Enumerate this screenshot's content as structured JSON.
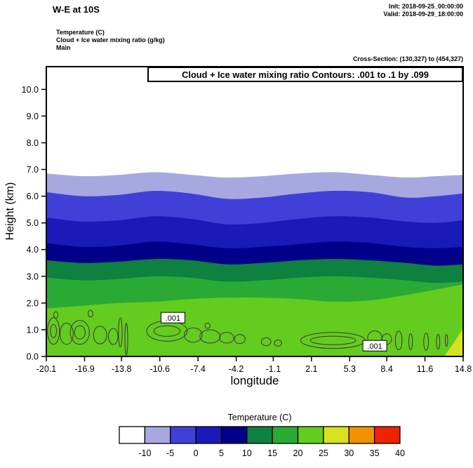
{
  "header": {
    "title": "W-E at 10S",
    "init_label": "Init: 2018-09-25_00:00:00",
    "valid_label": "Valid: 2018-09-29_18:00:00",
    "legend_lines": [
      "Temperature  (C)",
      "Cloud + Ice water mixing ratio  (g/kg)",
      "Main"
    ],
    "cross_section": "Cross-Section: (130,327) to (454,327)"
  },
  "plot": {
    "contour_box_label": "Cloud + Ice water mixing ratio Contours: .001 to .1 by .099",
    "ylabel": "Height (km)",
    "xlabel": "longitude"
  },
  "chart_data": {
    "type": "heatmap",
    "title": "Cloud + Ice water mixing ratio Contours: .001 to .1 by .099",
    "description": "W-E vertical cross-section at 10S: filled temperature (C) bands with cloud+ice mixing ratio line contours (.001 g/kg) near the surface",
    "xlabel": "longitude",
    "ylabel": "Height (km)",
    "xlim": [
      -20.1,
      14.8
    ],
    "ylim": [
      0,
      10.85
    ],
    "x_ticks": [
      "-20.1",
      "-16.9",
      "-13.8",
      "-10.6",
      "-7.4",
      "-4.2",
      "-1.1",
      "2.1",
      "5.3",
      "8.4",
      "11.6",
      "14.8"
    ],
    "y_ticks": [
      "0.0",
      "1.0",
      "2.0",
      "3.0",
      "4.0",
      "5.0",
      "6.0",
      "7.0",
      "8.0",
      "9.0",
      "10.0"
    ],
    "sample_lons": [
      -20.1,
      -17,
      -14,
      -11,
      -8,
      -5,
      -2,
      1,
      4,
      7,
      10,
      12.5,
      14.8
    ],
    "temperature_boundaries": [
      {
        "level_c": -10,
        "km": [
          6.85,
          6.75,
          6.8,
          6.9,
          6.8,
          6.7,
          6.75,
          6.85,
          6.9,
          6.8,
          6.7,
          6.75,
          6.8
        ]
      },
      {
        "level_c": -5,
        "km": [
          6.15,
          6.0,
          6.05,
          6.2,
          6.1,
          5.9,
          5.95,
          6.1,
          6.2,
          6.15,
          5.95,
          6.0,
          6.1
        ]
      },
      {
        "level_c": 0,
        "km": [
          5.2,
          5.05,
          5.1,
          5.25,
          5.15,
          4.95,
          5.0,
          5.15,
          5.25,
          5.2,
          5.05,
          5.0,
          5.1
        ]
      },
      {
        "level_c": 5,
        "km": [
          4.25,
          4.1,
          4.15,
          4.3,
          4.2,
          4.05,
          4.1,
          4.2,
          4.3,
          4.25,
          4.1,
          4.05,
          4.1
        ]
      },
      {
        "level_c": 10,
        "km": [
          3.6,
          3.5,
          3.55,
          3.65,
          3.6,
          3.45,
          3.5,
          3.6,
          3.65,
          3.6,
          3.5,
          3.4,
          3.45
        ]
      },
      {
        "level_c": 15,
        "km": [
          2.95,
          2.85,
          2.9,
          3.0,
          2.95,
          2.8,
          2.85,
          2.95,
          3.0,
          2.95,
          2.85,
          2.75,
          2.8
        ]
      },
      {
        "level_c": 20,
        "km": [
          1.8,
          1.9,
          2.0,
          2.05,
          2.15,
          2.2,
          2.2,
          2.15,
          2.05,
          2.1,
          2.3,
          2.5,
          2.7
        ]
      }
    ],
    "band_colors_top_to_bottom": [
      "#ffffff",
      "#a8a8e0",
      "#4040d8",
      "#1a1ab8",
      "#000089",
      "#0e8040",
      "#2aaa35",
      "#63cc1f"
    ],
    "warm_patch": {
      "color": "#d9e021",
      "points_lon_km": [
        [
          13.2,
          0
        ],
        [
          14.8,
          0
        ],
        [
          14.8,
          1.05
        ],
        [
          14.0,
          0.5
        ]
      ]
    },
    "cloud_contour_level": ".001",
    "cloud_contours": [
      {
        "lon": -19.5,
        "km": 0.95,
        "rx": 0.5,
        "ry": 0.5
      },
      {
        "lon": -19.5,
        "km": 0.95,
        "rx": 0.25,
        "ry": 0.25
      },
      {
        "lon": -19.3,
        "km": 1.55,
        "rx": 0.18,
        "ry": 0.12
      },
      {
        "lon": -18.4,
        "km": 0.85,
        "rx": 0.55,
        "ry": 0.4
      },
      {
        "lon": -17.3,
        "km": 0.9,
        "rx": 0.8,
        "ry": 0.45
      },
      {
        "lon": -17.3,
        "km": 0.9,
        "rx": 0.45,
        "ry": 0.25
      },
      {
        "lon": -16.4,
        "km": 1.6,
        "rx": 0.2,
        "ry": 0.13
      },
      {
        "lon": -15.6,
        "km": 0.8,
        "rx": 0.55,
        "ry": 0.33
      },
      {
        "lon": -14.5,
        "km": 0.75,
        "rx": 0.4,
        "ry": 0.3
      },
      {
        "lon": -13.9,
        "km": 0.9,
        "rx": 0.15,
        "ry": 0.55
      },
      {
        "lon": -13.4,
        "km": 0.65,
        "rx": 0.12,
        "ry": 0.6
      },
      {
        "lon": -10.0,
        "km": 0.95,
        "rx": 1.7,
        "ry": 0.38
      },
      {
        "lon": -10.0,
        "km": 0.95,
        "rx": 1.1,
        "ry": 0.2
      },
      {
        "lon": -7.8,
        "km": 0.8,
        "rx": 0.75,
        "ry": 0.27
      },
      {
        "lon": -6.4,
        "km": 0.75,
        "rx": 0.85,
        "ry": 0.25
      },
      {
        "lon": -6.6,
        "km": 1.15,
        "rx": 0.22,
        "ry": 0.1
      },
      {
        "lon": -5.0,
        "km": 0.7,
        "rx": 0.6,
        "ry": 0.2
      },
      {
        "lon": -3.9,
        "km": 0.65,
        "rx": 0.45,
        "ry": 0.17
      },
      {
        "lon": -1.7,
        "km": 0.55,
        "rx": 0.4,
        "ry": 0.15
      },
      {
        "lon": -0.7,
        "km": 0.5,
        "rx": 0.3,
        "ry": 0.12
      },
      {
        "lon": 3.9,
        "km": 0.6,
        "rx": 2.7,
        "ry": 0.3
      },
      {
        "lon": 3.9,
        "km": 0.6,
        "rx": 1.9,
        "ry": 0.16
      },
      {
        "lon": 7.4,
        "km": 0.7,
        "rx": 0.6,
        "ry": 0.26
      },
      {
        "lon": 8.4,
        "km": 0.65,
        "rx": 0.4,
        "ry": 0.2
      },
      {
        "lon": 9.4,
        "km": 0.6,
        "rx": 0.28,
        "ry": 0.35
      },
      {
        "lon": 10.4,
        "km": 0.55,
        "rx": 0.15,
        "ry": 0.3
      },
      {
        "lon": 11.7,
        "km": 0.55,
        "rx": 0.2,
        "ry": 0.32
      },
      {
        "lon": 12.7,
        "km": 0.55,
        "rx": 0.14,
        "ry": 0.28
      },
      {
        "lon": 13.4,
        "km": 0.6,
        "rx": 0.1,
        "ry": 0.22
      }
    ],
    "contour_labels": [
      {
        "text": ".001",
        "lon": -9.5,
        "km": 1.44
      },
      {
        "text": ".001",
        "lon": 7.4,
        "km": 0.39
      }
    ],
    "colorbar": {
      "title": "Temperature  (C)",
      "cell_colors": [
        "#ffffff",
        "#a8a8e0",
        "#4040d8",
        "#1a1ab8",
        "#000089",
        "#0e8040",
        "#2aaa35",
        "#63cc1f",
        "#d9e021",
        "#f29100",
        "#ee2200"
      ],
      "tick_labels": [
        "-10",
        "-5",
        "0",
        "5",
        "10",
        "15",
        "20",
        "25",
        "30",
        "35",
        "40"
      ]
    }
  }
}
